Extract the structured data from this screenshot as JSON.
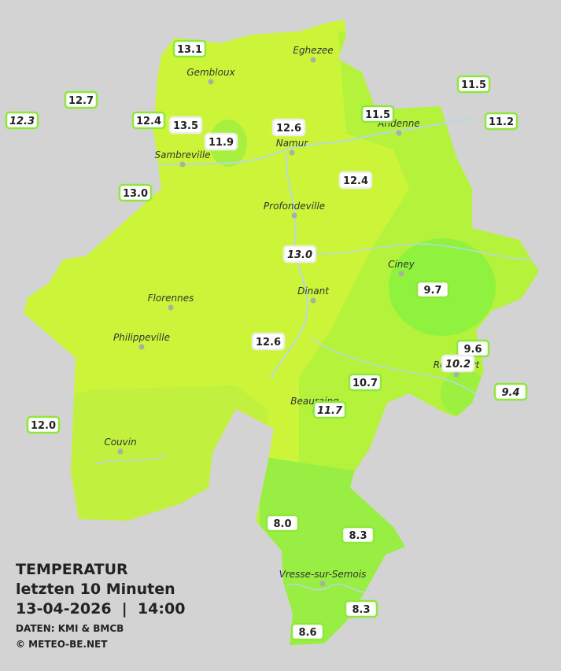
{
  "legend": {
    "title": "TEMPERATUR",
    "period": "letzten 10 Minuten",
    "datetime": "13-04-2026  |  14:00",
    "source": "DATEN: KMI & BMCB",
    "copyright": "© METEO-BE.NET"
  },
  "cities": [
    {
      "name": "Eghezee"
    },
    {
      "name": "Gembloux"
    },
    {
      "name": "Andenne"
    },
    {
      "name": "Namur"
    },
    {
      "name": "Sambreville"
    },
    {
      "name": "Profondeville"
    },
    {
      "name": "Ciney"
    },
    {
      "name": "Dinant"
    },
    {
      "name": "Florennes"
    },
    {
      "name": "Philippeville"
    },
    {
      "name": "Beauraing"
    },
    {
      "name": "Rochefort"
    },
    {
      "name": "Couvin"
    },
    {
      "name": "Vresse-sur-Semois"
    }
  ],
  "stations": [
    {
      "value": "13.1",
      "italic": false
    },
    {
      "value": "12.7",
      "italic": false
    },
    {
      "value": "12.3",
      "italic": true
    },
    {
      "value": "12.4",
      "italic": false
    },
    {
      "value": "13.5",
      "italic": false
    },
    {
      "value": "11.9",
      "italic": false
    },
    {
      "value": "12.6",
      "italic": false
    },
    {
      "value": "11.5",
      "italic": false
    },
    {
      "value": "11.5",
      "italic": false
    },
    {
      "value": "11.2",
      "italic": false
    },
    {
      "value": "13.0",
      "italic": false
    },
    {
      "value": "12.4",
      "italic": false
    },
    {
      "value": "13.0",
      "italic": true
    },
    {
      "value": "9.7",
      "italic": false
    },
    {
      "value": "12.6",
      "italic": false
    },
    {
      "value": "9.6",
      "italic": false
    },
    {
      "value": "10.2",
      "italic": true
    },
    {
      "value": "10.7",
      "italic": false
    },
    {
      "value": "9.4",
      "italic": true
    },
    {
      "value": "11.7",
      "italic": true
    },
    {
      "value": "12.0",
      "italic": false
    },
    {
      "value": "8.0",
      "italic": false
    },
    {
      "value": "8.3",
      "italic": false
    },
    {
      "value": "8.3",
      "italic": false
    },
    {
      "value": "8.6",
      "italic": false
    }
  ]
}
